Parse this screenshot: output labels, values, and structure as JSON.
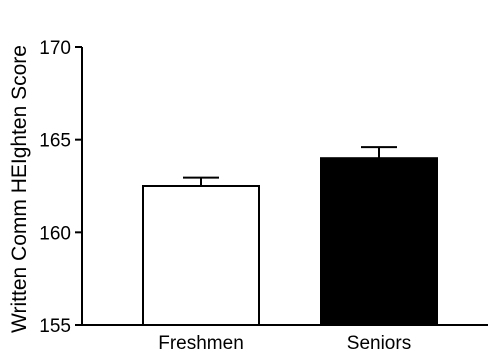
{
  "chart_data": {
    "type": "bar",
    "title": "",
    "xlabel": "",
    "ylabel": "Written Comm HEIghten Score",
    "categories": [
      "Freshmen",
      "Seniors"
    ],
    "values": [
      162.5,
      164.0
    ],
    "errors": [
      0.45,
      0.6
    ],
    "bar_fills": [
      "#ffffff",
      "#000000"
    ],
    "ylim": [
      155,
      170
    ],
    "yticks": [
      155,
      160,
      165,
      170
    ],
    "grid": false
  }
}
